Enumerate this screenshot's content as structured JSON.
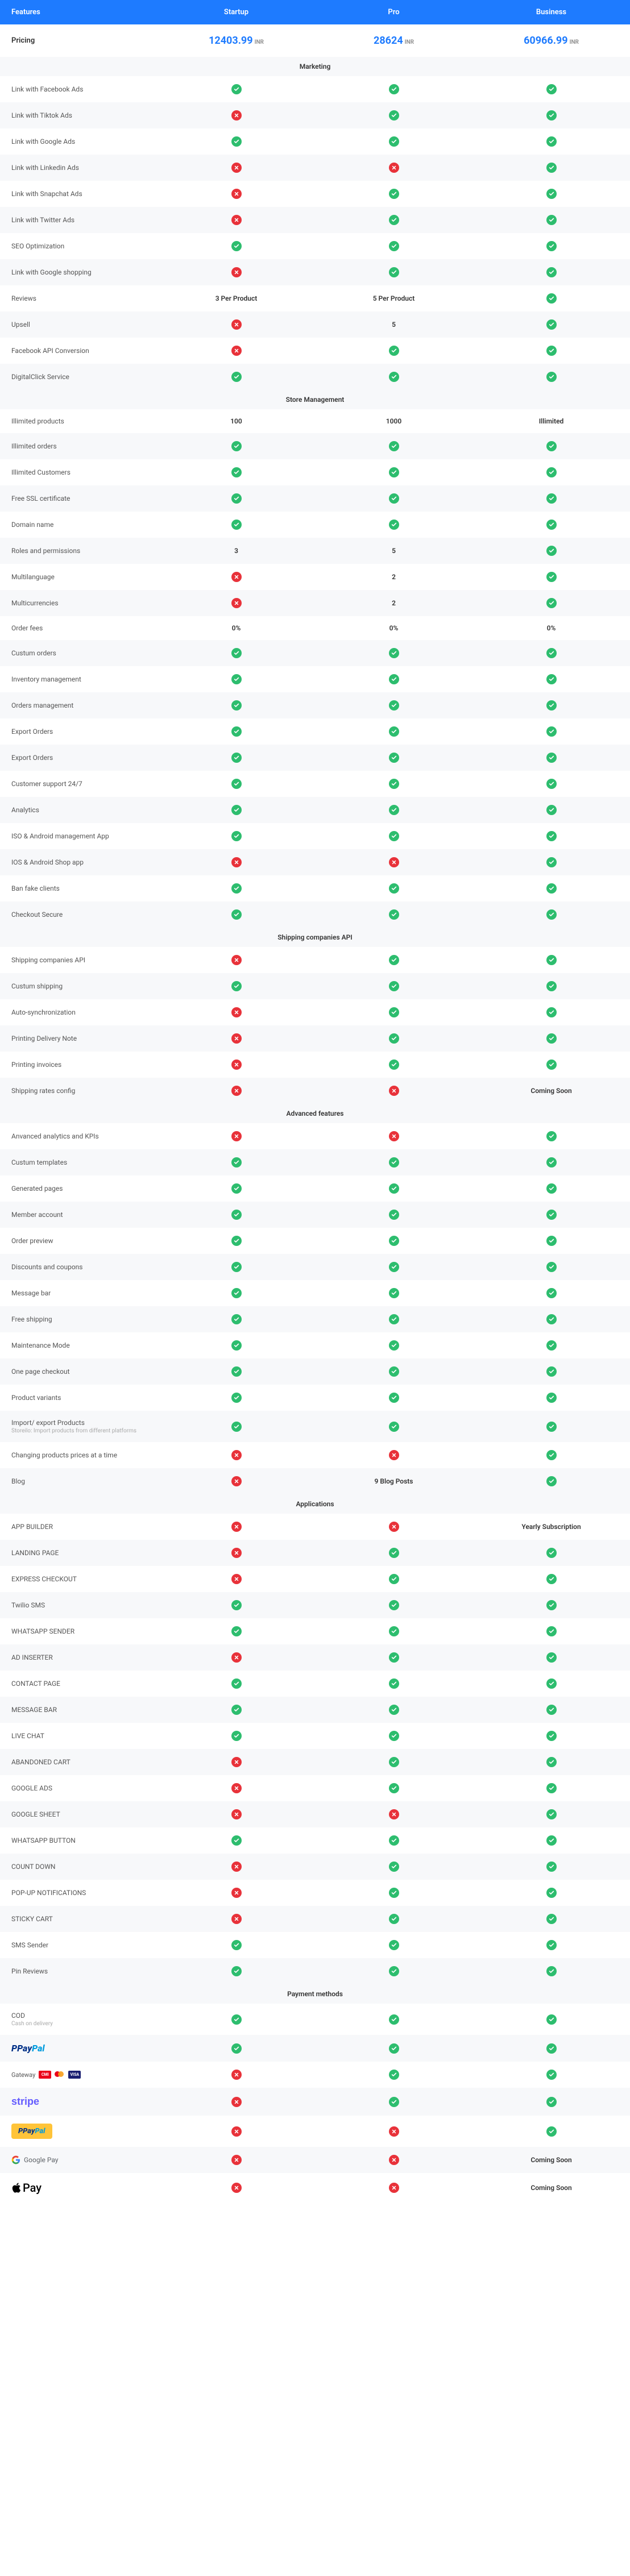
{
  "header": {
    "c0": "Features",
    "c1": "Startup",
    "c2": "Pro",
    "c3": "Business"
  },
  "pricing": {
    "label": "Pricing",
    "currency": "INR",
    "startup": "12403.99",
    "pro": "28624",
    "business": "60966.99"
  },
  "sections": [
    {
      "title": "Marketing",
      "rows": [
        {
          "label": "Link with Facebook Ads",
          "s": "y",
          "p": "y",
          "b": "y"
        },
        {
          "label": "Link with Tiktok Ads",
          "s": "n",
          "p": "y",
          "b": "y"
        },
        {
          "label": "Link with Google Ads",
          "s": "y",
          "p": "y",
          "b": "y"
        },
        {
          "label": "Link with Linkedin Ads",
          "s": "n",
          "p": "n",
          "b": "y"
        },
        {
          "label": "Link with Snapchat Ads",
          "s": "n",
          "p": "y",
          "b": "y"
        },
        {
          "label": "Link with Twitter Ads",
          "s": "n",
          "p": "y",
          "b": "y"
        },
        {
          "label": "SEO Optimization",
          "s": "y",
          "p": "y",
          "b": "y"
        },
        {
          "label": "Link with Google shopping",
          "s": "n",
          "p": "y",
          "b": "y"
        },
        {
          "label": "Reviews",
          "s": "3 Per Product",
          "p": "5 Per Product",
          "b": "y"
        },
        {
          "label": "Upsell",
          "s": "n",
          "p": "5",
          "b": "y"
        },
        {
          "label": "Facebook API Conversion",
          "s": "n",
          "p": "y",
          "b": "y"
        },
        {
          "label": "DigitalClick Service",
          "s": "y",
          "p": "y",
          "b": "y"
        }
      ]
    },
    {
      "title": "Store Management",
      "rows": [
        {
          "label": "Illimited products",
          "s": "100",
          "p": "1000",
          "b": "Illimited"
        },
        {
          "label": "Illimited orders",
          "s": "y",
          "p": "y",
          "b": "y"
        },
        {
          "label": "Illimited Customers",
          "s": "y",
          "p": "y",
          "b": "y"
        },
        {
          "label": "Free SSL certificate",
          "s": "y",
          "p": "y",
          "b": "y"
        },
        {
          "label": "Domain name",
          "s": "y",
          "p": "y",
          "b": "y"
        },
        {
          "label": "Roles and permissions",
          "s": "3",
          "p": "5",
          "b": "y"
        },
        {
          "label": "Multilanguage",
          "s": "n",
          "p": "2",
          "b": "y"
        },
        {
          "label": "Multicurrencies",
          "s": "n",
          "p": "2",
          "b": "y"
        },
        {
          "label": "Order fees",
          "s": "0%",
          "p": "0%",
          "b": "0%"
        },
        {
          "label": "Custum orders",
          "s": "y",
          "p": "y",
          "b": "y"
        },
        {
          "label": "Inventory management",
          "s": "y",
          "p": "y",
          "b": "y"
        },
        {
          "label": "Orders management",
          "s": "y",
          "p": "y",
          "b": "y"
        },
        {
          "label": "Export Orders",
          "s": "y",
          "p": "y",
          "b": "y"
        },
        {
          "label": "Export Orders",
          "s": "y",
          "p": "y",
          "b": "y"
        },
        {
          "label": "Customer support 24/7",
          "s": "y",
          "p": "y",
          "b": "y"
        },
        {
          "label": "Analytics",
          "s": "y",
          "p": "y",
          "b": "y"
        },
        {
          "label": "ISO & Android management App",
          "s": "y",
          "p": "y",
          "b": "y"
        },
        {
          "label": "IOS & Android Shop app",
          "s": "n",
          "p": "n",
          "b": "y"
        },
        {
          "label": "Ban fake clients",
          "s": "y",
          "p": "y",
          "b": "y"
        },
        {
          "label": "Checkout Secure",
          "s": "y",
          "p": "y",
          "b": "y"
        }
      ]
    },
    {
      "title": "Shipping companies API",
      "rows": [
        {
          "label": "Shipping companies API",
          "s": "n",
          "p": "y",
          "b": "y"
        },
        {
          "label": "Custum shipping",
          "s": "y",
          "p": "y",
          "b": "y"
        },
        {
          "label": "Auto-synchronization",
          "s": "n",
          "p": "y",
          "b": "y"
        },
        {
          "label": "Printing Delivery Note",
          "s": "n",
          "p": "y",
          "b": "y"
        },
        {
          "label": "Printing invoices",
          "s": "n",
          "p": "y",
          "b": "y"
        },
        {
          "label": "Shipping rates config",
          "s": "n",
          "p": "n",
          "b": "Coming Soon"
        }
      ]
    },
    {
      "title": "Advanced features",
      "rows": [
        {
          "label": "Anvanced analytics and KPIs",
          "s": "n",
          "p": "n",
          "b": "y"
        },
        {
          "label": "Custum templates",
          "s": "y",
          "p": "y",
          "b": "y"
        },
        {
          "label": "Generated pages",
          "s": "y",
          "p": "y",
          "b": "y"
        },
        {
          "label": "Member account",
          "s": "y",
          "p": "y",
          "b": "y"
        },
        {
          "label": "Order preview",
          "s": "y",
          "p": "y",
          "b": "y"
        },
        {
          "label": "Discounts and coupons",
          "s": "y",
          "p": "y",
          "b": "y"
        },
        {
          "label": "Message bar",
          "s": "y",
          "p": "y",
          "b": "y"
        },
        {
          "label": "Free shipping",
          "s": "y",
          "p": "y",
          "b": "y"
        },
        {
          "label": "Maintenance Mode",
          "s": "y",
          "p": "y",
          "b": "y"
        },
        {
          "label": "One page checkout",
          "s": "y",
          "p": "y",
          "b": "y"
        },
        {
          "label": "Product variants",
          "s": "y",
          "p": "y",
          "b": "y"
        },
        {
          "label": "Import/ export Products",
          "sub": "Storeilo: Import products from different platforms",
          "s": "y",
          "p": "y",
          "b": "y"
        },
        {
          "label": "Changing products prices at a time",
          "s": "n",
          "p": "n",
          "b": "y"
        },
        {
          "label": "Blog",
          "s": "n",
          "p": "9 Blog Posts",
          "b": "y"
        }
      ]
    },
    {
      "title": "Applications",
      "rows": [
        {
          "label": "APP BUILDER",
          "s": "n",
          "p": "n",
          "b": "Yearly Subscription"
        },
        {
          "label": "LANDING PAGE",
          "s": "n",
          "p": "y",
          "b": "y"
        },
        {
          "label": "EXPRESS CHECKOUT",
          "s": "n",
          "p": "y",
          "b": "y"
        },
        {
          "label": "Twilio SMS",
          "s": "y",
          "p": "y",
          "b": "y"
        },
        {
          "label": "WHATSAPP SENDER",
          "s": "y",
          "p": "y",
          "b": "y"
        },
        {
          "label": "AD INSERTER",
          "s": "n",
          "p": "y",
          "b": "y"
        },
        {
          "label": "CONTACT PAGE",
          "s": "y",
          "p": "y",
          "b": "y"
        },
        {
          "label": "MESSAGE BAR",
          "s": "y",
          "p": "y",
          "b": "y"
        },
        {
          "label": "LIVE CHAT",
          "s": "y",
          "p": "y",
          "b": "y"
        },
        {
          "label": "ABANDONED CART",
          "s": "n",
          "p": "y",
          "b": "y"
        },
        {
          "label": "GOOGLE ADS",
          "s": "n",
          "p": "y",
          "b": "y"
        },
        {
          "label": "GOOGLE SHEET",
          "s": "n",
          "p": "n",
          "b": "y"
        },
        {
          "label": "WHATSAPP BUTTON",
          "s": "y",
          "p": "y",
          "b": "y"
        },
        {
          "label": "COUNT DOWN",
          "s": "n",
          "p": "y",
          "b": "y"
        },
        {
          "label": "POP-UP NOTIFICATIONS",
          "s": "n",
          "p": "y",
          "b": "y"
        },
        {
          "label": "STICKY CART",
          "s": "n",
          "p": "y",
          "b": "y"
        },
        {
          "label": "SMS Sender",
          "s": "y",
          "p": "y",
          "b": "y"
        },
        {
          "label": "Pin Reviews",
          "s": "y",
          "p": "y",
          "b": "y"
        }
      ]
    },
    {
      "title": "Payment methods",
      "rows": [
        {
          "label": "COD",
          "sub": "Cash on delivery",
          "s": "y",
          "p": "y",
          "b": "y"
        },
        {
          "label": "PAYPAL_LOGO",
          "s": "y",
          "p": "y",
          "b": "y"
        },
        {
          "label": "GATEWAY_LOGO",
          "s": "n",
          "p": "y",
          "b": "y"
        },
        {
          "label": "STRIPE_LOGO",
          "s": "n",
          "p": "y",
          "b": "y"
        },
        {
          "label": "PAYPAL_BTN",
          "s": "n",
          "p": "n",
          "b": "y"
        },
        {
          "label": "GPAY_LOGO",
          "s": "n",
          "p": "n",
          "b": "Coming Soon"
        },
        {
          "label": "APPLEPAY_LOGO",
          "s": "n",
          "p": "n",
          "b": "Coming Soon"
        }
      ]
    }
  ]
}
